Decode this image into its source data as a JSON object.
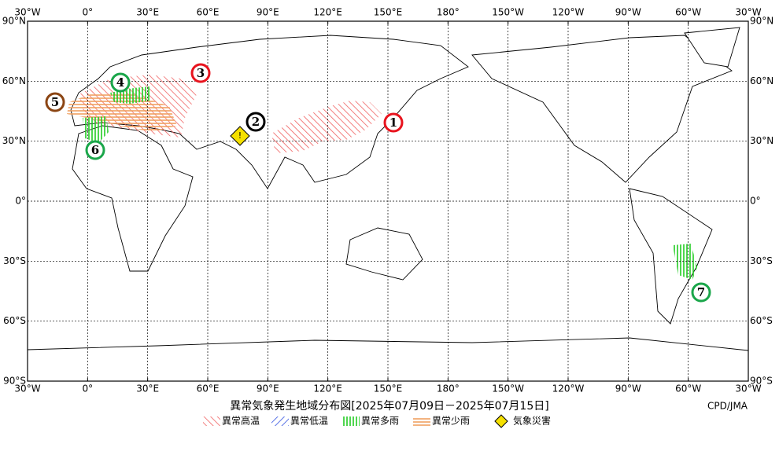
{
  "map": {
    "lon_labels": [
      "30°W",
      "0°",
      "30°E",
      "60°E",
      "90°E",
      "120°E",
      "150°E",
      "180°",
      "150°W",
      "120°W",
      "90°W",
      "60°W",
      "30°W"
    ],
    "lat_labels": [
      "90°N",
      "60°N",
      "30°N",
      "0°",
      "30°S",
      "60°S",
      "90°S"
    ],
    "markers": [
      {
        "label": "1",
        "color": "#e8141e"
      },
      {
        "label": "2",
        "color": "#000000"
      },
      {
        "label": "3",
        "color": "#e8141e"
      },
      {
        "label": "4",
        "color": "#1aa64a"
      },
      {
        "label": "5",
        "color": "#8b4513"
      },
      {
        "label": "6",
        "color": "#1aa64a"
      },
      {
        "label": "7",
        "color": "#1aa64a"
      }
    ],
    "disaster_symbol": "!"
  },
  "title": "異常気象発生地域分布図[2025年07月09日－2025年07月15日]",
  "credit": "CPD/JMA",
  "legend": [
    "異常高温",
    "異常低温",
    "異常多雨",
    "異常少雨",
    "気象災害"
  ]
}
